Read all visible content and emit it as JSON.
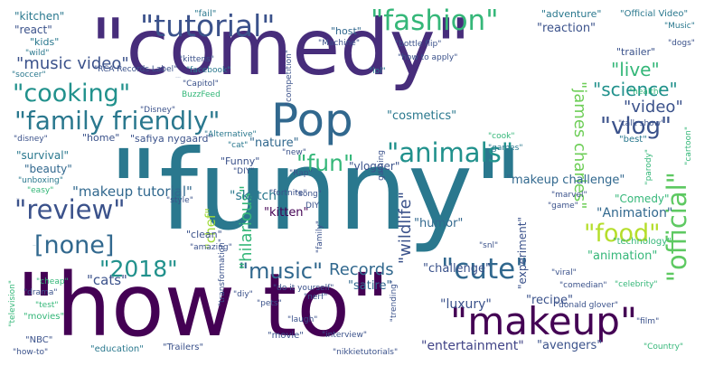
{
  "words": [
    {
      "text": "\"comedy\"",
      "color": "#472d7b"
    },
    {
      "text": "\"funny\"",
      "color": "#2a788e"
    },
    {
      "text": "\"how to\"",
      "color": "#440154"
    },
    {
      "text": "Pop",
      "color": "#31688e"
    },
    {
      "text": "\"makeup\"",
      "color": "#440154"
    },
    {
      "text": "\"tutorial\"",
      "color": "#3b528b"
    },
    {
      "text": "\"fashion\"",
      "color": "#35b779"
    },
    {
      "text": "\"family friendly\"",
      "color": "#2a788e"
    },
    {
      "text": "\"cooking\"",
      "color": "#21918c"
    },
    {
      "text": "\"animals\"",
      "color": "#21918c"
    },
    {
      "text": "\"review\"",
      "color": "#3b528b"
    },
    {
      "text": "[none]",
      "color": "#31688e"
    },
    {
      "text": "\"cute\"",
      "color": "#31688e"
    },
    {
      "text": "\"food\"",
      "color": "#b5de2b"
    },
    {
      "text": "\"official\"",
      "color": "#5ec962"
    },
    {
      "text": "\"vlog\"",
      "color": "#3b528b"
    },
    {
      "text": "\"2018\"",
      "color": "#21918c"
    },
    {
      "text": "\"music\"",
      "color": "#31688e"
    },
    {
      "text": "\"fun\"",
      "color": "#35b779"
    },
    {
      "text": "\"video\"",
      "color": "#3b528b"
    },
    {
      "text": "\"science\"",
      "color": "#21918c"
    },
    {
      "text": "\"live\"",
      "color": "#35b779"
    },
    {
      "text": "\"music video\"",
      "color": "#3b528b"
    },
    {
      "text": "Records",
      "color": "#31688e"
    },
    {
      "text": "\"james charles\"",
      "color": "#6ece58"
    },
    {
      "text": "\"Animation\"",
      "color": "#31688e"
    },
    {
      "text": "\"makeup tutorial\"",
      "color": "#31688e"
    },
    {
      "text": "\"hilarious\"",
      "color": "#35b779"
    },
    {
      "text": "\"Trailer\"",
      "color": "#2a788e"
    },
    {
      "text": "\"chef\"",
      "color": "#a0da39"
    },
    {
      "text": "\"wildlife\"",
      "color": "#3b528b"
    },
    {
      "text": "\"cats\"",
      "color": "#3b528b"
    },
    {
      "text": "\"sketch\"",
      "color": "#2a788e"
    },
    {
      "text": "\"kitten\"",
      "color": "#440154"
    },
    {
      "text": "\"luxury\"",
      "color": "#3b528b"
    },
    {
      "text": "\"entertainment\"",
      "color": "#414487"
    },
    {
      "text": "\"challenge\"",
      "color": "#3b528b"
    },
    {
      "text": "\"satire\"",
      "color": "#31688e"
    },
    {
      "text": "\"animation\"",
      "color": "#35b779"
    },
    {
      "text": "\"recipe\"",
      "color": "#3b528b"
    },
    {
      "text": "\"avengers\"",
      "color": "#3b528b"
    },
    {
      "text": "\"cosmetics\"",
      "color": "#2a788e"
    },
    {
      "text": "\"humor\"",
      "color": "#31688e"
    },
    {
      "text": "\"makeup challenge\"",
      "color": "#31688e"
    },
    {
      "text": "\"Comedy\"",
      "color": "#35b779"
    },
    {
      "text": "\"experiment\"",
      "color": "#3b528b"
    },
    {
      "text": "\"nature\"",
      "color": "#31688e"
    },
    {
      "text": "\"beauty\"",
      "color": "#31688e"
    },
    {
      "text": "\"survival\"",
      "color": "#2a788e"
    },
    {
      "text": "\"home\"",
      "color": "#3b528b"
    },
    {
      "text": "\"Funny\"",
      "color": "#3b528b"
    },
    {
      "text": "\"safiya nygaard\"",
      "color": "#3b528b"
    },
    {
      "text": "\"reaction\"",
      "color": "#3b528b"
    },
    {
      "text": "\"adventure\"",
      "color": "#2a788e"
    },
    {
      "text": "\"kitchen\"",
      "color": "#2a788e"
    },
    {
      "text": "\"react\"",
      "color": "#3b528b"
    },
    {
      "text": "\"kids\"",
      "color": "#2a788e"
    },
    {
      "text": "\"host\"",
      "color": "#31688e"
    },
    {
      "text": "\"trailer\"",
      "color": "#3b528b"
    },
    {
      "text": "\"health\"",
      "color": "#35b779"
    },
    {
      "text": "\"best\"",
      "color": "#2a788e"
    },
    {
      "text": "\"cartoon\"",
      "color": "#35b779"
    },
    {
      "text": "\"parody\"",
      "color": "#35b779"
    },
    {
      "text": "\"game\"",
      "color": "#3b528b"
    },
    {
      "text": "\"technology\"",
      "color": "#35b779"
    },
    {
      "text": "\"Official Video\"",
      "color": "#2a788e"
    },
    {
      "text": "\"Music\"",
      "color": "#2a788e"
    },
    {
      "text": "\"dogs\"",
      "color": "#3b528b"
    },
    {
      "text": "\"fail\"",
      "color": "#2a788e"
    },
    {
      "text": "\"kittens\"",
      "color": "#3b528b"
    },
    {
      "text": "\"RCA Records Label\"",
      "color": "#3b528b"
    },
    {
      "text": "\"Capitol\"",
      "color": "#3b528b"
    },
    {
      "text": "BuzzFeed",
      "color": "#35b779"
    },
    {
      "text": "\"Machine\"",
      "color": "#3b528b"
    },
    {
      "text": "\"competition\"",
      "color": "#3b528b"
    },
    {
      "text": "\"bottle flip\"",
      "color": "#3b528b"
    },
    {
      "text": "\"how to apply\"",
      "color": "#3b528b"
    },
    {
      "text": "\"lol\"",
      "color": "#2a788e"
    },
    {
      "text": "\"talk show\"",
      "color": "#3b528b"
    },
    {
      "text": "\"soccer\"",
      "color": "#2a788e"
    },
    {
      "text": "\"wild\"",
      "color": "#2a788e"
    },
    {
      "text": "\"facebook\"",
      "color": "#2a788e"
    },
    {
      "text": "\"hollywood\"",
      "color": "#3b528b"
    },
    {
      "text": "\"Disney\"",
      "color": "#3b528b"
    },
    {
      "text": "\"disney\"",
      "color": "#3b528b"
    },
    {
      "text": "\"Alternative\"",
      "color": "#2a788e"
    },
    {
      "text": "\"cat\"",
      "color": "#2a788e"
    },
    {
      "text": "\"cook\"",
      "color": "#35b779"
    },
    {
      "text": "\"games\"",
      "color": "#2a788e"
    },
    {
      "text": "\"unboxing\"",
      "color": "#2a788e"
    },
    {
      "text": "\"easy\"",
      "color": "#35b779"
    },
    {
      "text": "\"tricks\"",
      "color": "#3b528b"
    },
    {
      "text": "\"style\"",
      "color": "#3b528b"
    },
    {
      "text": "\"DIY\"",
      "color": "#3b528b"
    },
    {
      "text": "\"Rap\"",
      "color": "#3b528b"
    },
    {
      "text": "\"new\"",
      "color": "#3b528b"
    },
    {
      "text": "\"vlogger\"",
      "color": "#3b528b"
    },
    {
      "text": "gaming",
      "color": "#3b528b"
    },
    {
      "text": "\"marvel\"",
      "color": "#3b528b"
    },
    {
      "text": "\"fortnite\"",
      "color": "#3b528b"
    },
    {
      "text": "\"song\"",
      "color": "#3b528b"
    },
    {
      "text": "DIY",
      "color": "#3b528b"
    },
    {
      "text": "\"clean\"",
      "color": "#3b528b"
    },
    {
      "text": "\"transformation\"",
      "color": "#3b528b"
    },
    {
      "text": "\"amazing\"",
      "color": "#3b528b"
    },
    {
      "text": "\"family\"",
      "color": "#3b528b"
    },
    {
      "text": "\"snl\"",
      "color": "#3b528b"
    },
    {
      "text": "\"viral\"",
      "color": "#3b528b"
    },
    {
      "text": "\"celebrity\"",
      "color": "#35b779"
    },
    {
      "text": "\"diy\"",
      "color": "#3b528b"
    },
    {
      "text": "\"do it yourself\"",
      "color": "#3b528b"
    },
    {
      "text": "\"nerf\"",
      "color": "#3b528b"
    },
    {
      "text": "\"pets\"",
      "color": "#3b528b"
    },
    {
      "text": "\"laugh\"",
      "color": "#3b528b"
    },
    {
      "text": "\"trending\"",
      "color": "#3b528b"
    },
    {
      "text": "\"comedian\"",
      "color": "#3b528b"
    },
    {
      "text": "\"donald glover\"",
      "color": "#3b528b"
    },
    {
      "text": "\"film\"",
      "color": "#3b528b"
    },
    {
      "text": "\"movies\"",
      "color": "#35b779"
    },
    {
      "text": "\"test\"",
      "color": "#35b779"
    },
    {
      "text": "\"drama\"",
      "color": "#3b528b"
    },
    {
      "text": "\"NBC\"",
      "color": "#3b528b"
    },
    {
      "text": "\"movie\"",
      "color": "#3b528b"
    },
    {
      "text": "\"interview\"",
      "color": "#3b528b"
    },
    {
      "text": "\"television\"",
      "color": "#35b779"
    },
    {
      "text": "\"how-to\"",
      "color": "#3b528b"
    },
    {
      "text": "\"education\"",
      "color": "#2a788e"
    },
    {
      "text": "\"Trailers\"",
      "color": "#3b528b"
    },
    {
      "text": "\"nikkietutorials\"",
      "color": "#3b528b"
    },
    {
      "text": "\"Country\"",
      "color": "#35b779"
    },
    {
      "text": "\"cheap\"",
      "color": "#35b779"
    }
  ]
}
